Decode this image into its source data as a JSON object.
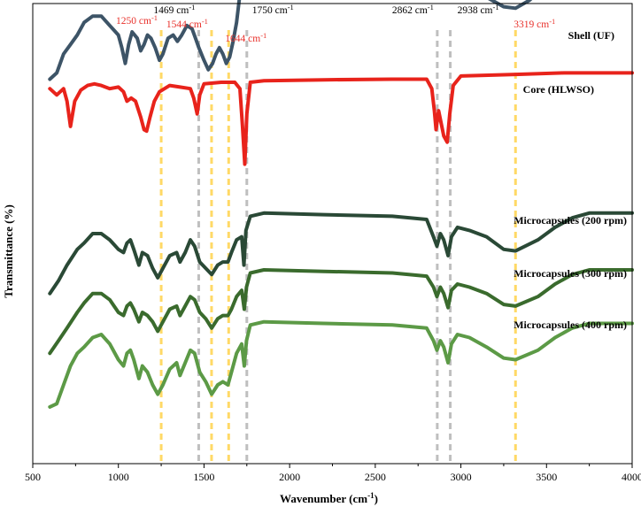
{
  "chart_data": {
    "type": "line",
    "title": "",
    "xlabel": "Wavenumber (cm",
    "xlabel_sup": "-1",
    "xlabel_end": ")",
    "ylabel": "Transmittance (%)",
    "xlim": [
      500,
      4000
    ],
    "xticks": [
      "500",
      "1000",
      "1500",
      "2000",
      "2500",
      "3000",
      "3500",
      "4000"
    ],
    "grid": false,
    "legend": "inline labels",
    "peak_lines": [
      {
        "x": 1250,
        "color": "#ffd966"
      },
      {
        "x": 1469,
        "color": "#bfbfbf"
      },
      {
        "x": 1544,
        "color": "#ffd966"
      },
      {
        "x": 1644,
        "color": "#ffd966"
      },
      {
        "x": 1750,
        "color": "#bfbfbf"
      },
      {
        "x": 2862,
        "color": "#bfbfbf"
      },
      {
        "x": 2938,
        "color": "#bfbfbf"
      },
      {
        "x": 3319,
        "color": "#ffd966"
      }
    ],
    "peak_labels": [
      {
        "text": "1250 cm",
        "sup": "-1",
        "x": 1250,
        "color": "#e8302a"
      },
      {
        "text": "1469 cm",
        "sup": "-1",
        "x": 1469,
        "color": "#000000"
      },
      {
        "text": "1544 cm",
        "sup": "-1",
        "x": 1544,
        "color": "#e8302a"
      },
      {
        "text": "1644 cm",
        "sup": "-1",
        "x": 1644,
        "color": "#e8302a"
      },
      {
        "text": "1750 cm",
        "sup": "-1",
        "x": 1750,
        "color": "#000000"
      },
      {
        "text": "2862 cm",
        "sup": "-1",
        "x": 2862,
        "color": "#000000"
      },
      {
        "text": "2938 cm",
        "sup": "-1",
        "x": 2938,
        "color": "#000000"
      },
      {
        "text": "3319 cm",
        "sup": "-1",
        "x": 3319,
        "color": "#e8302a"
      }
    ],
    "series": [
      {
        "name": "Shell (UF)",
        "color": "#3d5467",
        "offset": 10.5,
        "points": [
          [
            600,
            -0.9
          ],
          [
            640,
            -0.7
          ],
          [
            680,
            -0.1
          ],
          [
            720,
            0.2
          ],
          [
            760,
            0.5
          ],
          [
            800,
            0.9
          ],
          [
            850,
            1.1
          ],
          [
            900,
            1.1
          ],
          [
            950,
            0.8
          ],
          [
            1000,
            0.5
          ],
          [
            1020,
            0.1
          ],
          [
            1040,
            -0.4
          ],
          [
            1060,
            0.2
          ],
          [
            1080,
            0.6
          ],
          [
            1110,
            0.4
          ],
          [
            1130,
            0.0
          ],
          [
            1150,
            0.2
          ],
          [
            1170,
            0.5
          ],
          [
            1190,
            0.4
          ],
          [
            1215,
            0.1
          ],
          [
            1240,
            -0.3
          ],
          [
            1260,
            -0.1
          ],
          [
            1290,
            0.4
          ],
          [
            1320,
            0.5
          ],
          [
            1345,
            0.3
          ],
          [
            1370,
            0.5
          ],
          [
            1400,
            0.8
          ],
          [
            1430,
            0.7
          ],
          [
            1450,
            0.4
          ],
          [
            1470,
            0.1
          ],
          [
            1500,
            -0.3
          ],
          [
            1525,
            -0.6
          ],
          [
            1550,
            -0.4
          ],
          [
            1570,
            -0.1
          ],
          [
            1590,
            0.1
          ],
          [
            1610,
            -0.1
          ],
          [
            1630,
            -0.4
          ],
          [
            1650,
            -0.2
          ],
          [
            1670,
            0.3
          ],
          [
            1690,
            0.9
          ],
          [
            1710,
            1.8
          ],
          [
            1730,
            2.6
          ],
          [
            1760,
            2.7
          ],
          [
            1800,
            2.75
          ],
          [
            2000,
            2.6
          ],
          [
            2400,
            2.55
          ],
          [
            2800,
            2.45
          ],
          [
            2850,
            2.2
          ],
          [
            2870,
            2.4
          ],
          [
            2890,
            2.3
          ],
          [
            2920,
            1.9
          ],
          [
            2940,
            2.0
          ],
          [
            2970,
            2.1
          ],
          [
            3050,
            2.0
          ],
          [
            3150,
            1.7
          ],
          [
            3250,
            1.4
          ],
          [
            3319,
            1.35
          ],
          [
            3400,
            1.6
          ],
          [
            3500,
            2.1
          ],
          [
            3600,
            2.5
          ],
          [
            3700,
            2.75
          ],
          [
            3800,
            2.8
          ],
          [
            4000,
            2.8
          ]
        ]
      },
      {
        "name": "Core (HLWSO)",
        "color": "#e8231b",
        "offset": 8.9,
        "points": [
          [
            600,
            0.4
          ],
          [
            640,
            0.2
          ],
          [
            680,
            0.4
          ],
          [
            700,
            0.0
          ],
          [
            720,
            -0.8
          ],
          [
            745,
            0.0
          ],
          [
            780,
            0.35
          ],
          [
            820,
            0.5
          ],
          [
            860,
            0.55
          ],
          [
            900,
            0.5
          ],
          [
            950,
            0.4
          ],
          [
            1000,
            0.45
          ],
          [
            1030,
            0.3
          ],
          [
            1050,
            0.0
          ],
          [
            1075,
            0.1
          ],
          [
            1100,
            0.0
          ],
          [
            1130,
            -0.5
          ],
          [
            1150,
            -0.9
          ],
          [
            1165,
            -0.95
          ],
          [
            1185,
            -0.5
          ],
          [
            1210,
            0.0
          ],
          [
            1240,
            0.3
          ],
          [
            1300,
            0.5
          ],
          [
            1360,
            0.45
          ],
          [
            1420,
            0.4
          ],
          [
            1440,
            0.1
          ],
          [
            1460,
            -0.4
          ],
          [
            1475,
            0.2
          ],
          [
            1500,
            0.55
          ],
          [
            1600,
            0.6
          ],
          [
            1680,
            0.6
          ],
          [
            1710,
            0.4
          ],
          [
            1725,
            -0.8
          ],
          [
            1738,
            -2.0
          ],
          [
            1750,
            -0.4
          ],
          [
            1770,
            0.6
          ],
          [
            1850,
            0.65
          ],
          [
            2200,
            0.68
          ],
          [
            2600,
            0.7
          ],
          [
            2800,
            0.7
          ],
          [
            2830,
            0.4
          ],
          [
            2845,
            -0.3
          ],
          [
            2855,
            -0.9
          ],
          [
            2870,
            -0.3
          ],
          [
            2885,
            -0.7
          ],
          [
            2900,
            -1.1
          ],
          [
            2920,
            -1.3
          ],
          [
            2935,
            -0.4
          ],
          [
            2955,
            0.5
          ],
          [
            3000,
            0.8
          ],
          [
            3319,
            0.85
          ],
          [
            3600,
            0.9
          ],
          [
            4000,
            0.9
          ]
        ]
      },
      {
        "name": "Microcapsules (200 rpm)",
        "color": "#2a4936",
        "offset": 5.1,
        "points": [
          [
            600,
            -2.3
          ],
          [
            650,
            -1.9
          ],
          [
            700,
            -1.4
          ],
          [
            760,
            -0.9
          ],
          [
            800,
            -0.7
          ],
          [
            850,
            -0.4
          ],
          [
            900,
            -0.4
          ],
          [
            950,
            -0.6
          ],
          [
            1000,
            -0.9
          ],
          [
            1030,
            -1.0
          ],
          [
            1050,
            -0.7
          ],
          [
            1070,
            -0.6
          ],
          [
            1090,
            -0.9
          ],
          [
            1120,
            -1.4
          ],
          [
            1140,
            -1.0
          ],
          [
            1170,
            -1.1
          ],
          [
            1200,
            -1.5
          ],
          [
            1230,
            -1.8
          ],
          [
            1260,
            -1.5
          ],
          [
            1300,
            -1.1
          ],
          [
            1340,
            -1.0
          ],
          [
            1360,
            -1.3
          ],
          [
            1390,
            -1.0
          ],
          [
            1420,
            -0.6
          ],
          [
            1445,
            -0.8
          ],
          [
            1475,
            -1.3
          ],
          [
            1510,
            -1.5
          ],
          [
            1545,
            -1.7
          ],
          [
            1580,
            -1.4
          ],
          [
            1610,
            -1.3
          ],
          [
            1640,
            -1.3
          ],
          [
            1660,
            -1.0
          ],
          [
            1690,
            -0.6
          ],
          [
            1720,
            -0.5
          ],
          [
            1733,
            -1.4
          ],
          [
            1745,
            -0.3
          ],
          [
            1770,
            0.15
          ],
          [
            1850,
            0.25
          ],
          [
            2200,
            0.2
          ],
          [
            2600,
            0.15
          ],
          [
            2800,
            0.05
          ],
          [
            2840,
            -0.5
          ],
          [
            2860,
            -0.8
          ],
          [
            2880,
            -0.4
          ],
          [
            2900,
            -0.6
          ],
          [
            2925,
            -1.1
          ],
          [
            2945,
            -0.5
          ],
          [
            2980,
            -0.2
          ],
          [
            3050,
            -0.3
          ],
          [
            3150,
            -0.5
          ],
          [
            3250,
            -0.9
          ],
          [
            3319,
            -0.95
          ],
          [
            3450,
            -0.6
          ],
          [
            3550,
            -0.2
          ],
          [
            3650,
            0.1
          ],
          [
            3750,
            0.25
          ],
          [
            4000,
            0.25
          ]
        ]
      },
      {
        "name": "Microcapsules (300 rpm)",
        "color": "#3a6b2d",
        "offset": 3.3,
        "points": [
          [
            600,
            -2.4
          ],
          [
            650,
            -2.0
          ],
          [
            700,
            -1.6
          ],
          [
            760,
            -1.1
          ],
          [
            800,
            -0.8
          ],
          [
            850,
            -0.5
          ],
          [
            900,
            -0.5
          ],
          [
            950,
            -0.7
          ],
          [
            1000,
            -1.1
          ],
          [
            1030,
            -1.2
          ],
          [
            1050,
            -0.9
          ],
          [
            1070,
            -0.8
          ],
          [
            1090,
            -1.0
          ],
          [
            1120,
            -1.4
          ],
          [
            1140,
            -1.1
          ],
          [
            1170,
            -1.2
          ],
          [
            1200,
            -1.4
          ],
          [
            1230,
            -1.7
          ],
          [
            1260,
            -1.4
          ],
          [
            1300,
            -1.0
          ],
          [
            1340,
            -0.9
          ],
          [
            1360,
            -1.2
          ],
          [
            1390,
            -0.9
          ],
          [
            1420,
            -0.6
          ],
          [
            1445,
            -0.7
          ],
          [
            1475,
            -1.1
          ],
          [
            1510,
            -1.3
          ],
          [
            1545,
            -1.6
          ],
          [
            1580,
            -1.3
          ],
          [
            1610,
            -1.2
          ],
          [
            1640,
            -1.2
          ],
          [
            1660,
            -1.0
          ],
          [
            1690,
            -0.6
          ],
          [
            1720,
            -0.4
          ],
          [
            1735,
            -1.0
          ],
          [
            1748,
            -0.3
          ],
          [
            1770,
            0.15
          ],
          [
            1850,
            0.25
          ],
          [
            2200,
            0.2
          ],
          [
            2600,
            0.15
          ],
          [
            2800,
            0.05
          ],
          [
            2840,
            -0.3
          ],
          [
            2860,
            -0.6
          ],
          [
            2880,
            -0.3
          ],
          [
            2900,
            -0.5
          ],
          [
            2925,
            -0.95
          ],
          [
            2945,
            -0.4
          ],
          [
            2980,
            -0.2
          ],
          [
            3050,
            -0.3
          ],
          [
            3150,
            -0.5
          ],
          [
            3250,
            -0.85
          ],
          [
            3319,
            -0.9
          ],
          [
            3450,
            -0.6
          ],
          [
            3550,
            -0.2
          ],
          [
            3650,
            0.1
          ],
          [
            3750,
            0.25
          ],
          [
            4000,
            0.25
          ]
        ]
      },
      {
        "name": "Microcapsules (400 rpm)",
        "color": "#5c9a46",
        "offset": 1.5,
        "points": [
          [
            600,
            -2.3
          ],
          [
            640,
            -2.2
          ],
          [
            680,
            -1.6
          ],
          [
            720,
            -1.0
          ],
          [
            760,
            -0.6
          ],
          [
            800,
            -0.4
          ],
          [
            850,
            -0.1
          ],
          [
            900,
            0.0
          ],
          [
            950,
            -0.3
          ],
          [
            1000,
            -0.8
          ],
          [
            1030,
            -1.0
          ],
          [
            1050,
            -0.6
          ],
          [
            1070,
            -0.5
          ],
          [
            1090,
            -0.8
          ],
          [
            1120,
            -1.4
          ],
          [
            1140,
            -1.0
          ],
          [
            1170,
            -1.2
          ],
          [
            1200,
            -1.6
          ],
          [
            1230,
            -1.9
          ],
          [
            1260,
            -1.6
          ],
          [
            1300,
            -1.1
          ],
          [
            1340,
            -0.9
          ],
          [
            1360,
            -1.3
          ],
          [
            1390,
            -0.9
          ],
          [
            1420,
            -0.5
          ],
          [
            1445,
            -0.6
          ],
          [
            1475,
            -1.2
          ],
          [
            1510,
            -1.5
          ],
          [
            1545,
            -1.9
          ],
          [
            1580,
            -1.6
          ],
          [
            1610,
            -1.5
          ],
          [
            1640,
            -1.6
          ],
          [
            1660,
            -1.2
          ],
          [
            1690,
            -0.6
          ],
          [
            1720,
            -0.3
          ],
          [
            1735,
            -1.0
          ],
          [
            1748,
            -0.2
          ],
          [
            1770,
            0.3
          ],
          [
            1850,
            0.4
          ],
          [
            2200,
            0.35
          ],
          [
            2600,
            0.3
          ],
          [
            2800,
            0.2
          ],
          [
            2840,
            -0.2
          ],
          [
            2860,
            -0.5
          ],
          [
            2880,
            -0.2
          ],
          [
            2900,
            -0.4
          ],
          [
            2925,
            -0.9
          ],
          [
            2945,
            -0.3
          ],
          [
            2980,
            0.0
          ],
          [
            3050,
            -0.1
          ],
          [
            3150,
            -0.4
          ],
          [
            3250,
            -0.75
          ],
          [
            3319,
            -0.8
          ],
          [
            3450,
            -0.5
          ],
          [
            3550,
            -0.1
          ],
          [
            3650,
            0.2
          ],
          [
            3750,
            0.35
          ],
          [
            4000,
            0.35
          ]
        ]
      }
    ]
  }
}
